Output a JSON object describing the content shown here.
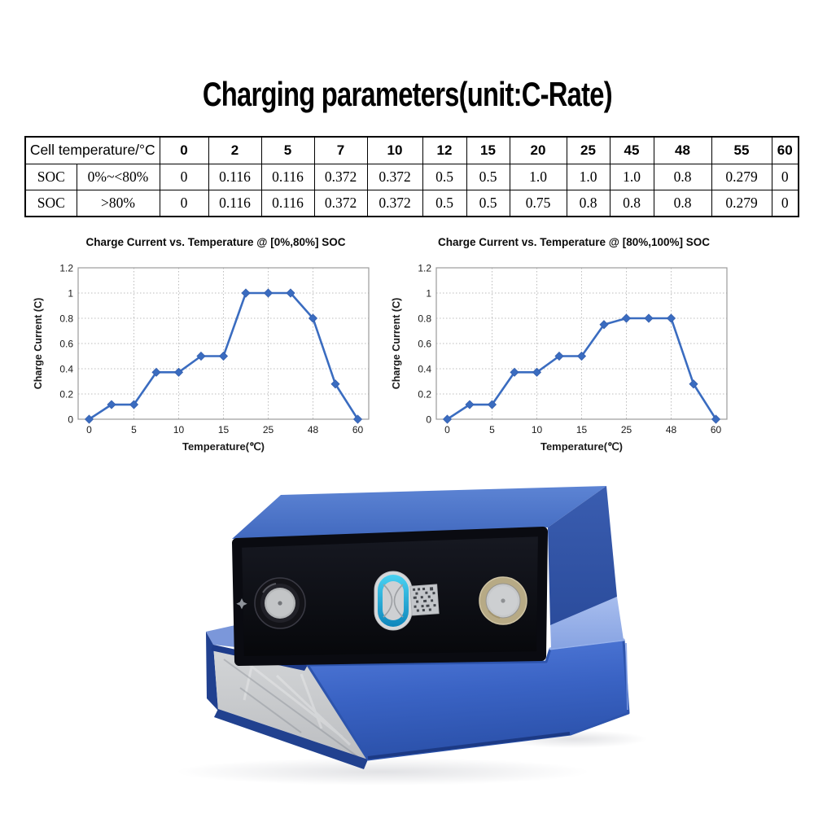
{
  "page": {
    "title": "Charging parameters(unit:C-Rate)",
    "background": "#ffffff"
  },
  "table": {
    "header_label": "Cell temperature/°C",
    "temperatures": [
      "0",
      "2",
      "5",
      "7",
      "10",
      "12",
      "15",
      "20",
      "25",
      "45",
      "48",
      "55",
      "60"
    ],
    "rows": [
      {
        "group": "SOC",
        "range": "0%~<80%",
        "values": [
          "0",
          "0.116",
          "0.116",
          "0.372",
          "0.372",
          "0.5",
          "0.5",
          "1.0",
          "1.0",
          "1.0",
          "0.8",
          "0.279",
          "0"
        ]
      },
      {
        "group": "SOC",
        "range": ">80%",
        "values": [
          "0",
          "0.116",
          "0.116",
          "0.372",
          "0.372",
          "0.5",
          "0.5",
          "0.75",
          "0.8",
          "0.8",
          "0.8",
          "0.279",
          "0"
        ]
      }
    ]
  },
  "chart_data": [
    {
      "type": "line",
      "title": "Charge Current vs. Temperature @ [0%,80%] SOC",
      "xlabel": "Temperature(℃)",
      "ylabel": "Charge Current (C)",
      "categories": [
        "0",
        "2",
        "5",
        "7",
        "10",
        "12",
        "15",
        "20",
        "25",
        "45",
        "48",
        "55",
        "60"
      ],
      "values": [
        0,
        0.116,
        0.116,
        0.372,
        0.372,
        0.5,
        0.5,
        1.0,
        1.0,
        1.0,
        0.8,
        0.279,
        0
      ],
      "x_tick_labels_shown": [
        "0",
        "5",
        "10",
        "15",
        "25",
        "48",
        "60"
      ],
      "ylim": [
        0,
        1.2
      ],
      "y_tick_step": 0.2,
      "grid": true,
      "legend": "none",
      "line_color": "#3a6cc0",
      "marker": "diamond"
    },
    {
      "type": "line",
      "title": "Charge Current vs. Temperature @ [80%,100%] SOC",
      "xlabel": "Temperature(℃)",
      "ylabel": "Charge Current (C)",
      "categories": [
        "0",
        "2",
        "5",
        "7",
        "10",
        "12",
        "15",
        "20",
        "25",
        "45",
        "48",
        "55",
        "60"
      ],
      "values": [
        0,
        0.116,
        0.116,
        0.372,
        0.372,
        0.5,
        0.5,
        0.75,
        0.8,
        0.8,
        0.8,
        0.279,
        0
      ],
      "x_tick_labels_shown": [
        "0",
        "5",
        "10",
        "15",
        "25",
        "48",
        "60"
      ],
      "ylim": [
        0,
        1.2
      ],
      "y_tick_step": 0.2,
      "grid": true,
      "legend": "none",
      "line_color": "#3a6cc0",
      "marker": "diamond"
    }
  ],
  "photo": {
    "colors": {
      "cell_wrap_blue": "#3f66bb",
      "cell_top_black": "#0a0b11",
      "aluminum_face": "#c9cbcd",
      "vent_cyan": "#2fb9e0",
      "positive_terminal_gold": "#b7aa85",
      "negative_terminal_black": "#1f1f26",
      "terminal_silver": "#c3c5c7"
    }
  }
}
